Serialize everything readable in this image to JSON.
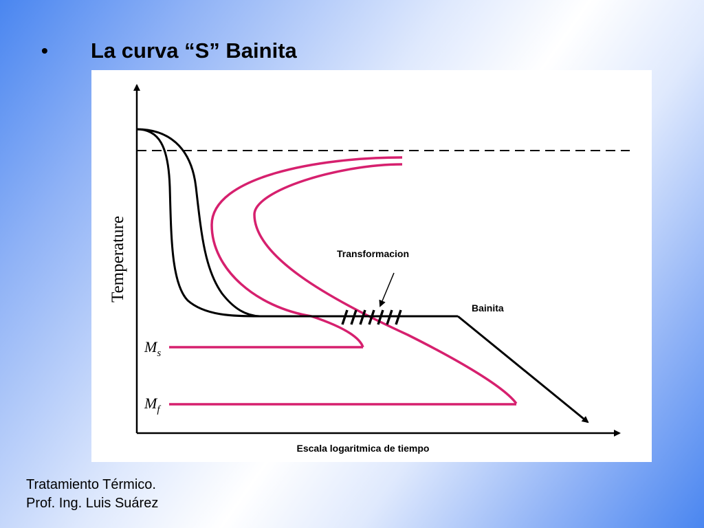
{
  "slide": {
    "bullet": "•",
    "title": "La curva “S” Bainita"
  },
  "diagram": {
    "y_axis_label": "Temperature",
    "x_axis_label": "Escala logaritmica de tiempo",
    "transformation_label": "Transformacion",
    "bainite_label": "Bainita",
    "ms_label": {
      "main": "M",
      "sub": "s"
    },
    "mf_label": {
      "main": "M",
      "sub": "f"
    },
    "colors": {
      "axes": "#000000",
      "cooling_curves": "#000000",
      "ttt_curves": "#d6206e",
      "dashed_line": "#000000",
      "figure_background": "#ffffff"
    }
  },
  "footer": {
    "line1": "Tratamiento Térmico.",
    "line2": "Prof. Ing. Luis Suárez"
  }
}
